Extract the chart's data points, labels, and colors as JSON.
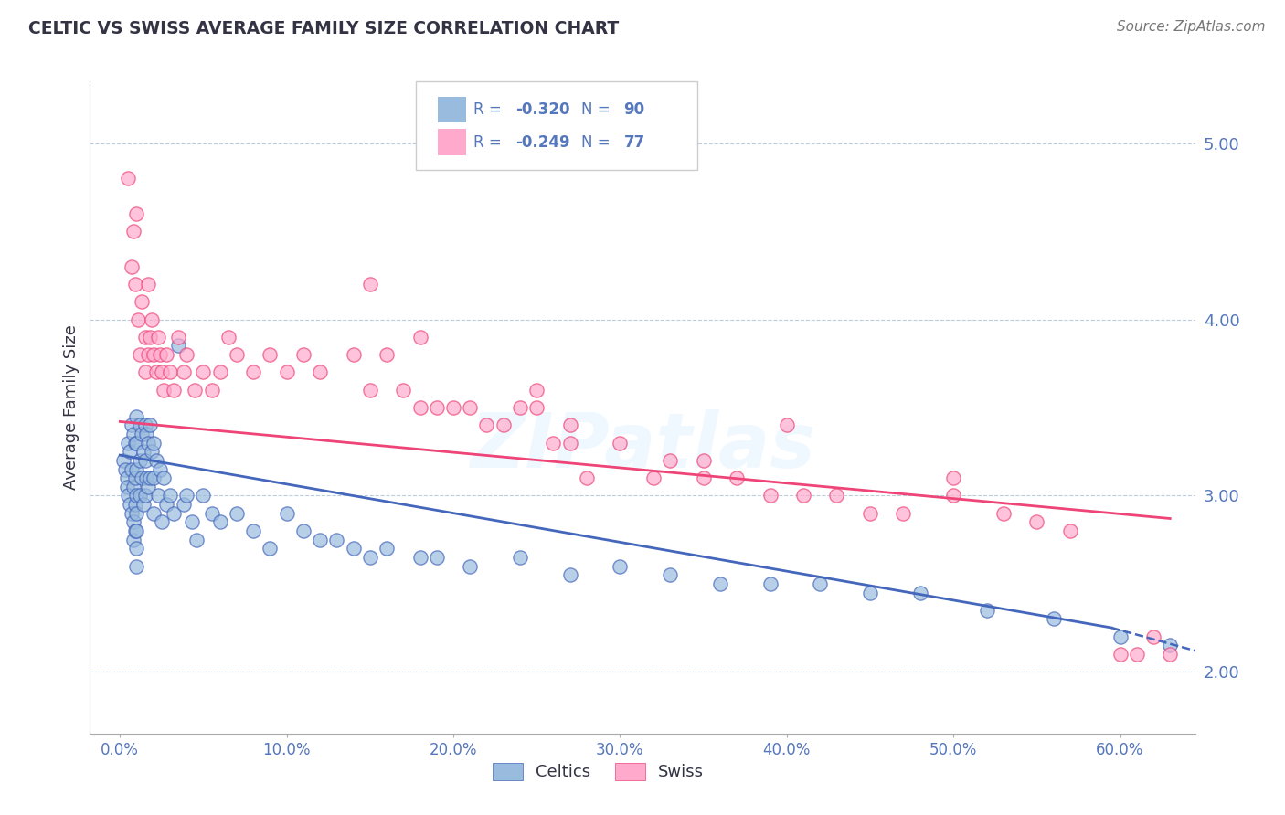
{
  "title": "CELTIC VS SWISS AVERAGE FAMILY SIZE CORRELATION CHART",
  "source": "Source: ZipAtlas.com",
  "ylabel": "Average Family Size",
  "xlabel_ticks": [
    "0.0%",
    "10.0%",
    "20.0%",
    "30.0%",
    "40.0%",
    "50.0%",
    "60.0%"
  ],
  "xlabel_vals": [
    0.0,
    0.1,
    0.2,
    0.3,
    0.4,
    0.5,
    0.6
  ],
  "ytick_labels": [
    "2.00",
    "3.00",
    "4.00",
    "5.00"
  ],
  "ytick_vals": [
    2.0,
    3.0,
    4.0,
    5.0
  ],
  "ylim": [
    1.65,
    5.35
  ],
  "xlim": [
    -0.018,
    0.645
  ],
  "watermark": "ZIPatlas",
  "blue_color": "#99BBDD",
  "pink_color": "#FFAACC",
  "blue_line_color": "#4466BB",
  "pink_line_color": "#EE4477",
  "title_color": "#333344",
  "tick_label_color": "#5577BB",
  "celtics_x": [
    0.002,
    0.003,
    0.004,
    0.004,
    0.005,
    0.005,
    0.006,
    0.006,
    0.007,
    0.007,
    0.007,
    0.008,
    0.008,
    0.008,
    0.008,
    0.009,
    0.009,
    0.009,
    0.009,
    0.01,
    0.01,
    0.01,
    0.01,
    0.01,
    0.01,
    0.01,
    0.01,
    0.012,
    0.012,
    0.012,
    0.013,
    0.013,
    0.014,
    0.014,
    0.015,
    0.015,
    0.015,
    0.016,
    0.016,
    0.017,
    0.017,
    0.018,
    0.018,
    0.019,
    0.02,
    0.02,
    0.02,
    0.022,
    0.023,
    0.024,
    0.025,
    0.026,
    0.028,
    0.03,
    0.032,
    0.035,
    0.038,
    0.04,
    0.043,
    0.046,
    0.05,
    0.055,
    0.06,
    0.07,
    0.08,
    0.09,
    0.1,
    0.11,
    0.12,
    0.13,
    0.14,
    0.15,
    0.16,
    0.18,
    0.19,
    0.21,
    0.24,
    0.27,
    0.3,
    0.33,
    0.36,
    0.39,
    0.42,
    0.45,
    0.48,
    0.52,
    0.56,
    0.6,
    0.63
  ],
  "celtics_y": [
    3.2,
    3.15,
    3.1,
    3.05,
    3.3,
    3.0,
    3.25,
    2.95,
    3.4,
    3.15,
    2.9,
    3.35,
    3.05,
    2.85,
    2.75,
    3.3,
    3.1,
    2.95,
    2.8,
    3.45,
    3.3,
    3.15,
    3.0,
    2.9,
    2.8,
    2.7,
    2.6,
    3.4,
    3.2,
    3.0,
    3.35,
    3.1,
    3.25,
    2.95,
    3.4,
    3.2,
    3.0,
    3.35,
    3.1,
    3.3,
    3.05,
    3.4,
    3.1,
    3.25,
    3.3,
    3.1,
    2.9,
    3.2,
    3.0,
    3.15,
    2.85,
    3.1,
    2.95,
    3.0,
    2.9,
    3.85,
    2.95,
    3.0,
    2.85,
    2.75,
    3.0,
    2.9,
    2.85,
    2.9,
    2.8,
    2.7,
    2.9,
    2.8,
    2.75,
    2.75,
    2.7,
    2.65,
    2.7,
    2.65,
    2.65,
    2.6,
    2.65,
    2.55,
    2.6,
    2.55,
    2.5,
    2.5,
    2.5,
    2.45,
    2.45,
    2.35,
    2.3,
    2.2,
    2.15
  ],
  "swiss_x": [
    0.005,
    0.007,
    0.008,
    0.009,
    0.01,
    0.011,
    0.012,
    0.013,
    0.015,
    0.015,
    0.017,
    0.017,
    0.018,
    0.019,
    0.02,
    0.022,
    0.023,
    0.024,
    0.025,
    0.026,
    0.028,
    0.03,
    0.032,
    0.035,
    0.038,
    0.04,
    0.045,
    0.05,
    0.055,
    0.06,
    0.065,
    0.07,
    0.08,
    0.09,
    0.1,
    0.11,
    0.12,
    0.14,
    0.15,
    0.16,
    0.17,
    0.18,
    0.19,
    0.2,
    0.21,
    0.22,
    0.23,
    0.24,
    0.25,
    0.26,
    0.27,
    0.28,
    0.3,
    0.32,
    0.33,
    0.35,
    0.37,
    0.39,
    0.41,
    0.43,
    0.45,
    0.47,
    0.5,
    0.53,
    0.55,
    0.57,
    0.6,
    0.61,
    0.62,
    0.63,
    0.15,
    0.18,
    0.25,
    0.27,
    0.35,
    0.4,
    0.5
  ],
  "swiss_y": [
    4.8,
    4.3,
    4.5,
    4.2,
    4.6,
    4.0,
    3.8,
    4.1,
    3.9,
    3.7,
    4.2,
    3.8,
    3.9,
    4.0,
    3.8,
    3.7,
    3.9,
    3.8,
    3.7,
    3.6,
    3.8,
    3.7,
    3.6,
    3.9,
    3.7,
    3.8,
    3.6,
    3.7,
    3.6,
    3.7,
    3.9,
    3.8,
    3.7,
    3.8,
    3.7,
    3.8,
    3.7,
    3.8,
    3.6,
    3.8,
    3.6,
    3.5,
    3.5,
    3.5,
    3.5,
    3.4,
    3.4,
    3.5,
    3.5,
    3.3,
    3.4,
    3.1,
    3.3,
    3.1,
    3.2,
    3.1,
    3.1,
    3.0,
    3.0,
    3.0,
    2.9,
    2.9,
    3.0,
    2.9,
    2.85,
    2.8,
    2.1,
    2.1,
    2.2,
    2.1,
    4.2,
    3.9,
    3.6,
    3.3,
    3.2,
    3.4,
    3.1
  ],
  "blue_trend": [
    0.0,
    3.23,
    0.595,
    2.25
  ],
  "blue_dash": [
    0.595,
    2.25,
    0.645,
    2.12
  ],
  "pink_trend": [
    0.0,
    3.42,
    0.63,
    2.87
  ]
}
